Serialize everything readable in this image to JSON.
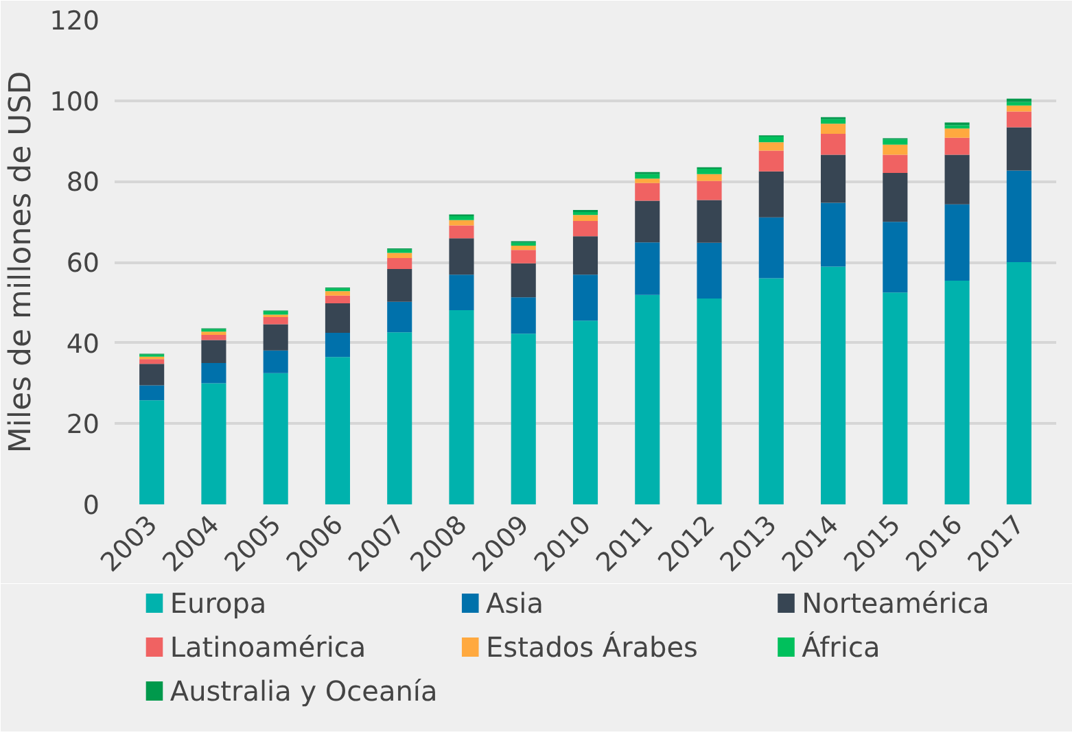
{
  "chart_data": {
    "type": "bar",
    "stacked": true,
    "ylabel": "Miles de millones de USD",
    "categories": [
      "2003",
      "2004",
      "2005",
      "2006",
      "2007",
      "2008",
      "2009",
      "2010",
      "2011",
      "2012",
      "2013",
      "2014",
      "2015",
      "2016",
      "2017"
    ],
    "ylim": [
      0,
      120
    ],
    "yticks": [
      0,
      20,
      40,
      60,
      80,
      100,
      120
    ],
    "grid": "y",
    "legend": "bottom",
    "series": [
      {
        "name": "Europa",
        "color": "#00b2ad",
        "values": [
          25.8,
          30.0,
          32.5,
          36.5,
          42.6,
          48.1,
          42.3,
          45.5,
          51.9,
          51.0,
          56.0,
          58.9,
          52.5,
          55.4,
          60.0
        ]
      },
      {
        "name": "Asia",
        "color": "#0071ab",
        "values": [
          3.7,
          5.0,
          5.6,
          6.0,
          7.6,
          8.8,
          9.0,
          11.4,
          13.0,
          13.8,
          15.1,
          15.8,
          17.5,
          18.9,
          22.7
        ]
      },
      {
        "name": "Norteamérica",
        "color": "#374553",
        "values": [
          5.3,
          5.7,
          6.5,
          7.3,
          8.1,
          9.0,
          8.4,
          9.5,
          10.3,
          10.6,
          11.4,
          11.9,
          12.1,
          12.3,
          10.7
        ]
      },
      {
        "name": "Latinoamérica",
        "color": "#f06262",
        "values": [
          1.2,
          1.3,
          1.8,
          1.9,
          2.7,
          3.2,
          3.3,
          3.8,
          4.4,
          4.7,
          5.1,
          5.2,
          4.5,
          4.2,
          3.9
        ]
      },
      {
        "name": "Estados Árabes",
        "color": "#ffa93f",
        "values": [
          0.6,
          0.8,
          0.6,
          1.1,
          1.3,
          1.3,
          1.1,
          1.5,
          1.1,
          1.7,
          2.1,
          2.5,
          2.5,
          2.3,
          1.5
        ]
      },
      {
        "name": "África",
        "color": "#00c05c",
        "values": [
          0.5,
          0.6,
          0.8,
          0.7,
          0.8,
          1.0,
          0.7,
          0.7,
          1.1,
          1.3,
          1.4,
          1.1,
          1.3,
          0.8,
          0.9
        ]
      },
      {
        "name": "Australia y Oceanía",
        "color": "#00994c",
        "values": [
          0.2,
          0.2,
          0.2,
          0.2,
          0.3,
          0.4,
          0.4,
          0.5,
          0.5,
          0.4,
          0.3,
          0.5,
          0.3,
          0.7,
          0.8
        ]
      }
    ]
  }
}
